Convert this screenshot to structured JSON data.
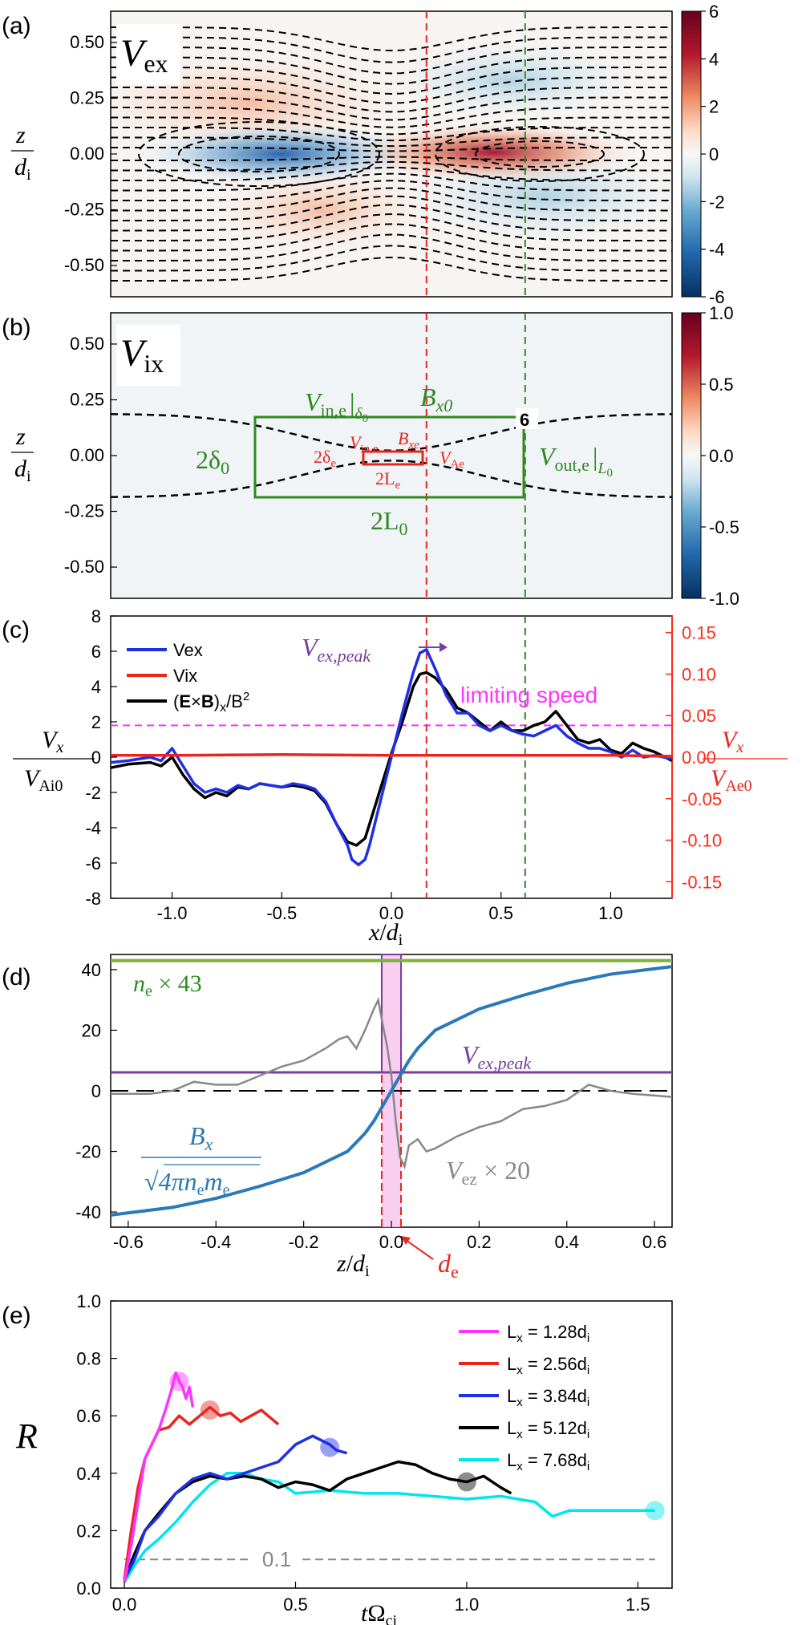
{
  "colors": {
    "red": "#e8261e",
    "blue": "#1f2fe6",
    "green": "#2f8a22",
    "magenta": "#ff33ff",
    "purple": "#7b3ea0",
    "steel": "#2a79b8",
    "gray": "#888888",
    "cyan": "#00e5ee",
    "olive": "#7fb038"
  },
  "chart_data": [
    {
      "id": "a",
      "type": "heatmap",
      "panel_label": "(a)",
      "quantity_label": "V",
      "quantity_sub": "ex",
      "ylabel_num": "z",
      "ylabel_den": "d",
      "ylabel_den_sub": "i",
      "xlim": [
        -1.28,
        1.28
      ],
      "ylim": [
        -0.64,
        0.64
      ],
      "yticks": [
        "0.50",
        "0.25",
        "0.00",
        "-0.25",
        "-0.50"
      ],
      "colorbar_ticks": [
        "6",
        "4",
        "2",
        "0",
        "-2",
        "-4",
        "-6"
      ],
      "colorbar_range": [
        -6,
        6
      ],
      "colormap": "RdBu_r",
      "vlines_x": [
        0.16,
        0.61
      ]
    },
    {
      "id": "b",
      "type": "heatmap",
      "panel_label": "(b)",
      "quantity_label": "V",
      "quantity_sub": "ix",
      "ylabel_num": "z",
      "ylabel_den": "d",
      "ylabel_den_sub": "i",
      "xlim": [
        -1.28,
        1.28
      ],
      "ylim": [
        -0.64,
        0.64
      ],
      "yticks": [
        "0.50",
        "0.25",
        "0.00",
        "-0.25",
        "-0.50"
      ],
      "colorbar_ticks": [
        "1.0",
        "0.5",
        "0.0",
        "-0.5",
        "-1.0"
      ],
      "colorbar_range": [
        -1,
        1
      ],
      "annotations": {
        "vin_delta0_main": "V",
        "vin_delta0_sub": "in,e",
        "vin_delta0_bar": "|",
        "vin_delta0_bar_sub": "δ",
        "vin_delta0_bar_sub2": "0",
        "bx0_main": "B",
        "bx0_sub": "x0",
        "box_label": "6",
        "two_delta0": "2δ",
        "two_delta0_sub": "0",
        "vout_main": "V",
        "vout_sub": "out,e",
        "vout_bar": "|",
        "vout_bar_sub": "L",
        "vout_bar_sub2": "0",
        "two_L0": "2L",
        "two_L0_sub": "0",
        "vin_e_main": "V",
        "vin_e_sub": "in,e",
        "bxe_main": "B",
        "bxe_sub": "xe",
        "two_delta_e": "2δ",
        "two_delta_e_sub": "e",
        "vae_main": "V",
        "vae_sub": "Ae",
        "two_Le": "2L",
        "two_Le_sub": "e"
      }
    },
    {
      "id": "c",
      "type": "line",
      "panel_label": "(c)",
      "xlabel_main": "x",
      "xlabel_slash": "/",
      "xlabel_den": "d",
      "xlabel_den_sub": "i",
      "ylabel_num": "V",
      "ylabel_num_sub": "x",
      "ylabel_den": "V",
      "ylabel_den_sub": "Ai0",
      "ylabel_right_num": "V",
      "ylabel_right_num_sub": "x",
      "ylabel_right_den": "V",
      "ylabel_right_den_sub": "Ae0",
      "xlim": [
        -1.28,
        1.28
      ],
      "ylim": [
        -8,
        8
      ],
      "xticks": [
        -1.0,
        -0.5,
        0.0,
        0.5,
        1.0
      ],
      "xtick_labels": [
        "-1.0",
        "-0.5",
        "0.0",
        "0.5",
        "1.0"
      ],
      "yticks": [
        -8,
        -6,
        -4,
        -2,
        0,
        2,
        4,
        6,
        8
      ],
      "yticks_right": [
        "0.15",
        "0.10",
        "0.05",
        "0.00",
        "-0.05",
        "-0.10",
        "-0.15"
      ],
      "legend": [
        "Vex",
        "Vix",
        "(E×B)x/B²"
      ],
      "legend_parts": {
        "vex": "V",
        "vex_sub": "ex",
        "vix": "V",
        "vix_sub": "ix",
        "exb_open": "(",
        "exb_E": "E",
        "exb_x": "×",
        "exb_B": "B",
        "exb_close": ")",
        "exb_sub": "x",
        "exb_div": "/B",
        "exb_sup": "2"
      },
      "annot_peak_main": "V",
      "annot_peak_sub": "ex,peak",
      "annot_limit": "limiting speed",
      "limiting_speed_value": 1.8,
      "vlines_x": [
        0.16,
        0.61
      ],
      "series": [
        {
          "name": "Vex",
          "x": [
            -1.28,
            -1.2,
            -1.1,
            -1.05,
            -1.0,
            -0.95,
            -0.9,
            -0.85,
            -0.8,
            -0.75,
            -0.7,
            -0.65,
            -0.6,
            -0.55,
            -0.5,
            -0.45,
            -0.4,
            -0.35,
            -0.3,
            -0.25,
            -0.2,
            -0.18,
            -0.15,
            -0.12,
            -0.1,
            -0.05,
            0.0,
            0.05,
            0.1,
            0.13,
            0.16,
            0.2,
            0.25,
            0.3,
            0.35,
            0.4,
            0.45,
            0.5,
            0.55,
            0.6,
            0.65,
            0.7,
            0.75,
            0.8,
            0.85,
            0.9,
            0.95,
            1.0,
            1.05,
            1.1,
            1.15,
            1.2,
            1.28
          ],
          "values": [
            -0.3,
            -0.2,
            0.0,
            -0.2,
            0.5,
            -0.5,
            -1.5,
            -2.0,
            -1.8,
            -2.0,
            -1.6,
            -1.8,
            -1.5,
            -1.6,
            -1.7,
            -1.5,
            -1.6,
            -1.8,
            -2.5,
            -3.8,
            -5.0,
            -5.8,
            -6.1,
            -5.8,
            -5.0,
            -2.5,
            0.0,
            2.5,
            4.8,
            5.9,
            6.1,
            5.0,
            3.5,
            2.5,
            2.5,
            1.8,
            1.5,
            1.8,
            1.5,
            1.3,
            1.2,
            1.5,
            1.8,
            1.2,
            0.8,
            0.5,
            0.5,
            0.3,
            0.0,
            0.4,
            0.0,
            0.1,
            -0.1
          ]
        },
        {
          "name": "Vix",
          "x": [
            -1.28,
            -1.0,
            -0.5,
            0.0,
            0.5,
            1.0,
            1.28
          ],
          "values": [
            0.1,
            0.1,
            0.15,
            0.1,
            0.1,
            0.1,
            0.05
          ]
        },
        {
          "name": "(E×B)x/B²",
          "x": [
            -1.28,
            -1.2,
            -1.1,
            -1.05,
            -1.0,
            -0.95,
            -0.9,
            -0.85,
            -0.8,
            -0.75,
            -0.7,
            -0.65,
            -0.6,
            -0.55,
            -0.5,
            -0.45,
            -0.4,
            -0.35,
            -0.3,
            -0.25,
            -0.2,
            -0.16,
            -0.12,
            -0.1,
            -0.05,
            0.0,
            0.05,
            0.1,
            0.13,
            0.16,
            0.2,
            0.25,
            0.3,
            0.35,
            0.4,
            0.45,
            0.5,
            0.55,
            0.6,
            0.65,
            0.7,
            0.75,
            0.8,
            0.85,
            0.9,
            0.95,
            1.0,
            1.05,
            1.1,
            1.15,
            1.2,
            1.28
          ],
          "values": [
            -0.6,
            -0.4,
            -0.3,
            -0.5,
            0.0,
            -1.0,
            -1.8,
            -2.3,
            -2.0,
            -2.2,
            -1.7,
            -1.8,
            -1.5,
            -1.6,
            -1.7,
            -1.6,
            -1.7,
            -1.9,
            -2.6,
            -3.8,
            -4.8,
            -5.0,
            -4.6,
            -3.8,
            -1.8,
            0.2,
            2.0,
            4.0,
            4.7,
            4.8,
            4.5,
            3.8,
            2.8,
            2.5,
            2.0,
            1.5,
            2.0,
            1.5,
            1.5,
            1.8,
            2.0,
            2.6,
            1.8,
            1.0,
            0.8,
            1.0,
            0.4,
            0.2,
            0.8,
            0.5,
            0.3,
            -0.2
          ]
        }
      ]
    },
    {
      "id": "d",
      "type": "line",
      "panel_label": "(d)",
      "xlabel_main": "z",
      "xlabel_slash": "/",
      "xlabel_den": "d",
      "xlabel_den_sub": "i",
      "xlim": [
        -0.64,
        0.64
      ],
      "ylim": [
        -45,
        45
      ],
      "xticks": [
        -0.6,
        -0.4,
        -0.2,
        0.0,
        0.2,
        0.4,
        0.6
      ],
      "xtick_labels": [
        "-0.6",
        "-0.4",
        "-0.2",
        "0.0",
        "0.2",
        "0.4",
        "0.6"
      ],
      "yticks": [
        -40,
        -20,
        0,
        20,
        40
      ],
      "annot_ne_main": "n",
      "annot_ne_sub": "e",
      "annot_ne_rest": " × 43",
      "annot_peak_main": "V",
      "annot_peak_sub": "ex,peak",
      "annot_bx_num": "B",
      "annot_bx_num_sub": "x",
      "annot_bx_den": "√",
      "annot_bx_den_rest": "4πn",
      "annot_bx_den_sub": "e",
      "annot_bx_den_m": "m",
      "annot_bx_den_m_sub": "e",
      "annot_vez_main": "V",
      "annot_vez_sub": "ez",
      "annot_vez_rest": " × 20",
      "annot_de_main": "d",
      "annot_de_sub": "e",
      "peak_level": 6.1,
      "ne_level": 43,
      "de_band": [
        -0.022,
        0.022
      ],
      "series": [
        {
          "name": "Bx",
          "x": [
            -0.64,
            -0.5,
            -0.4,
            -0.3,
            -0.2,
            -0.1,
            -0.06,
            -0.04,
            -0.02,
            0.0,
            0.02,
            0.04,
            0.06,
            0.1,
            0.2,
            0.3,
            0.4,
            0.5,
            0.64
          ],
          "values": [
            -41,
            -38.5,
            -35.5,
            -31.5,
            -27,
            -20,
            -14,
            -10,
            -5,
            0,
            5,
            10,
            14,
            20,
            27,
            31.5,
            35.5,
            38.5,
            41
          ]
        },
        {
          "name": "Vez×20",
          "x": [
            -0.64,
            -0.55,
            -0.5,
            -0.45,
            -0.4,
            -0.35,
            -0.3,
            -0.25,
            -0.2,
            -0.15,
            -0.12,
            -0.1,
            -0.08,
            -0.06,
            -0.04,
            -0.03,
            -0.02,
            -0.01,
            0.0,
            0.01,
            0.02,
            0.03,
            0.04,
            0.06,
            0.08,
            0.1,
            0.15,
            0.2,
            0.25,
            0.3,
            0.35,
            0.4,
            0.45,
            0.5,
            0.55,
            0.64
          ],
          "values": [
            -1,
            -1,
            0,
            3,
            2,
            2,
            5,
            8,
            10,
            14,
            17,
            18,
            14,
            20,
            27,
            30,
            22,
            15,
            5,
            -10,
            -22,
            -25,
            -18,
            -16,
            -20,
            -19,
            -15,
            -12,
            -10,
            -6,
            -5,
            -3,
            2,
            0,
            -1,
            -2
          ]
        },
        {
          "name": "ne×43",
          "x": [
            -0.64,
            0.64
          ],
          "values": [
            43,
            43
          ]
        }
      ]
    },
    {
      "id": "e",
      "type": "line",
      "panel_label": "(e)",
      "ylabel": "R",
      "xlabel_main": "t",
      "xlabel_omega": "Ω",
      "xlabel_sub": "ci",
      "xlim": [
        -0.04,
        1.6
      ],
      "ylim": [
        0,
        1
      ],
      "xticks": [
        0.0,
        0.5,
        1.0,
        1.5
      ],
      "xtick_labels": [
        "0.0",
        "0.5",
        "1.0",
        "1.5"
      ],
      "yticks": [
        0.0,
        0.2,
        0.4,
        0.6,
        0.8,
        1.0
      ],
      "ytick_labels": [
        "0.0",
        "0.2",
        "0.4",
        "0.6",
        "0.8",
        "1.0"
      ],
      "ref_value": 0.1,
      "ref_label": "0.1",
      "legend_title_parts": {
        "L": "L",
        "x": "x",
        "eq": " = ",
        "d": "d",
        "i": "i"
      },
      "series": [
        {
          "name": "Lx = 1.28di",
          "size_value": "1.28",
          "x": [
            0.0,
            0.02,
            0.04,
            0.06,
            0.08,
            0.1,
            0.12,
            0.14,
            0.15,
            0.16,
            0.17,
            0.18,
            0.19,
            0.2
          ],
          "values": [
            0.02,
            0.15,
            0.3,
            0.45,
            0.5,
            0.55,
            0.62,
            0.7,
            0.75,
            0.72,
            0.7,
            0.66,
            0.7,
            0.63
          ],
          "marker": [
            0.16,
            0.72
          ]
        },
        {
          "name": "Lx = 2.56di",
          "size_value": "2.56",
          "x": [
            0.0,
            0.02,
            0.04,
            0.06,
            0.08,
            0.1,
            0.13,
            0.16,
            0.19,
            0.22,
            0.25,
            0.28,
            0.31,
            0.34,
            0.37,
            0.4,
            0.43,
            0.45
          ],
          "values": [
            0.03,
            0.2,
            0.35,
            0.45,
            0.5,
            0.55,
            0.56,
            0.6,
            0.57,
            0.6,
            0.63,
            0.6,
            0.61,
            0.58,
            0.6,
            0.62,
            0.59,
            0.57
          ],
          "marker": [
            0.25,
            0.62
          ]
        },
        {
          "name": "Lx = 3.84di",
          "size_value": "3.84",
          "x": [
            0.0,
            0.03,
            0.06,
            0.1,
            0.15,
            0.2,
            0.25,
            0.3,
            0.35,
            0.4,
            0.45,
            0.5,
            0.55,
            0.6,
            0.62,
            0.65
          ],
          "values": [
            0.03,
            0.1,
            0.2,
            0.25,
            0.33,
            0.38,
            0.4,
            0.38,
            0.4,
            0.42,
            0.44,
            0.5,
            0.53,
            0.5,
            0.48,
            0.47
          ],
          "marker": [
            0.6,
            0.49
          ]
        },
        {
          "name": "Lx = 5.12di",
          "size_value": "5.12",
          "x": [
            0.0,
            0.03,
            0.06,
            0.1,
            0.15,
            0.2,
            0.25,
            0.3,
            0.35,
            0.4,
            0.45,
            0.5,
            0.55,
            0.6,
            0.65,
            0.7,
            0.75,
            0.8,
            0.85,
            0.9,
            0.95,
            1.0,
            1.05,
            1.1,
            1.13
          ],
          "values": [
            0.03,
            0.12,
            0.2,
            0.26,
            0.33,
            0.37,
            0.39,
            0.38,
            0.39,
            0.38,
            0.35,
            0.37,
            0.36,
            0.34,
            0.38,
            0.4,
            0.42,
            0.44,
            0.43,
            0.4,
            0.38,
            0.37,
            0.39,
            0.35,
            0.33
          ],
          "marker": [
            1.0,
            0.37
          ]
        },
        {
          "name": "Lx = 7.68di",
          "size_value": "7.68",
          "x": [
            0.0,
            0.03,
            0.06,
            0.1,
            0.15,
            0.2,
            0.25,
            0.3,
            0.35,
            0.4,
            0.45,
            0.5,
            0.6,
            0.7,
            0.8,
            0.9,
            1.0,
            1.1,
            1.2,
            1.25,
            1.3,
            1.4,
            1.5,
            1.55
          ],
          "values": [
            0.02,
            0.08,
            0.13,
            0.17,
            0.23,
            0.3,
            0.36,
            0.4,
            0.4,
            0.38,
            0.37,
            0.33,
            0.34,
            0.33,
            0.33,
            0.32,
            0.31,
            0.32,
            0.3,
            0.25,
            0.27,
            0.27,
            0.27,
            0.27
          ],
          "marker": [
            1.55,
            0.27
          ]
        }
      ]
    }
  ]
}
